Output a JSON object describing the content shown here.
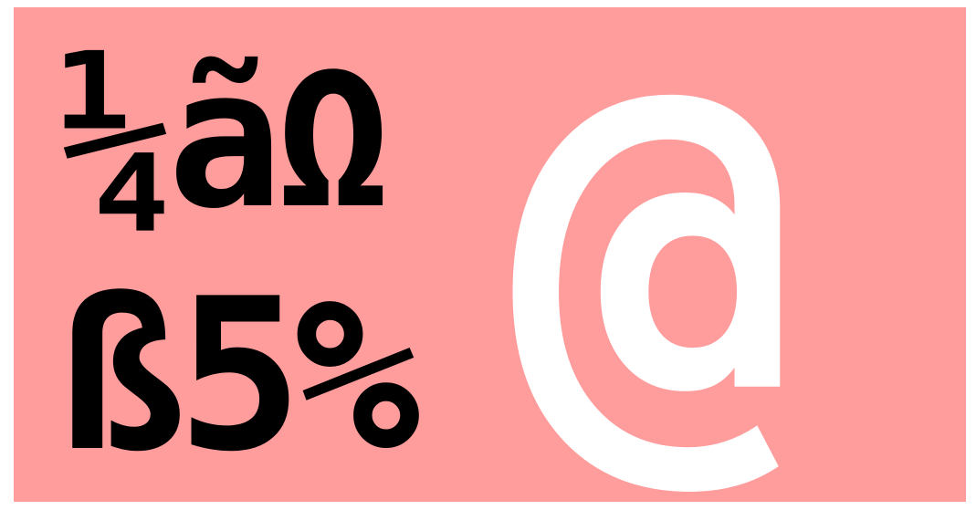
{
  "specimen": {
    "line1": "¼ãΩ",
    "line2": "ß5%",
    "glyph": "@"
  }
}
